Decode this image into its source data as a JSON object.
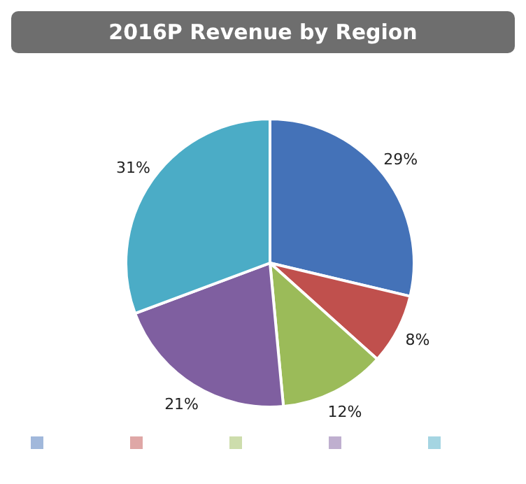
{
  "chart_data": {
    "type": "pie",
    "title": "2016P Revenue by Region",
    "categories": [
      null,
      null,
      null,
      null,
      null
    ],
    "values": [
      29,
      8,
      12,
      21,
      31
    ],
    "value_labels": [
      "29%",
      "8%",
      "12%",
      "21%",
      "31%"
    ],
    "colors": [
      "#4472b8",
      "#c0504d",
      "#9bbb59",
      "#7f5fa0",
      "#4bacc6"
    ]
  }
}
